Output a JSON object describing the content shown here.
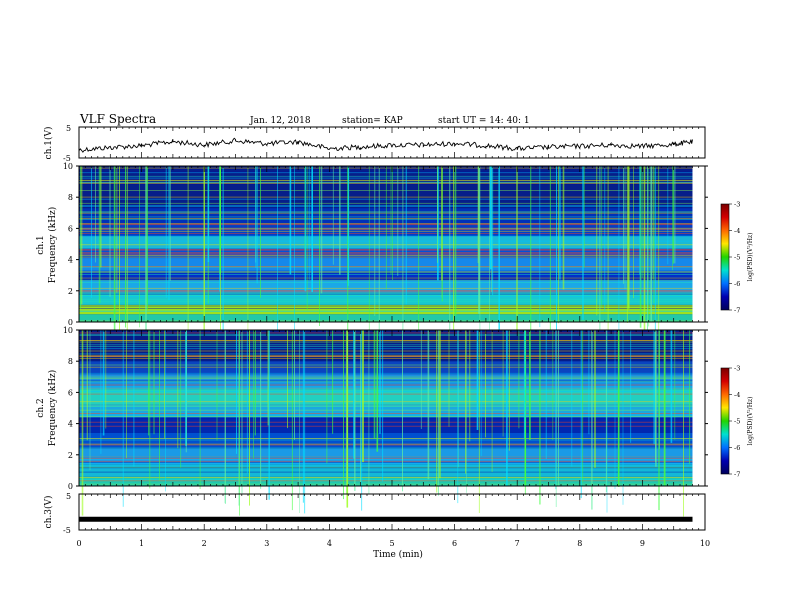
{
  "header": {
    "title": "VLF Spectra",
    "date": "Jan. 12, 2018",
    "station": "station= KAP",
    "start": "start UT =  14: 40: 1"
  },
  "colorbar": {
    "label": "log(PSD)(V²/Hz)",
    "ticks": [
      "-3",
      "-4",
      "-5",
      "-6",
      "-7"
    ],
    "colors": [
      "#7a0000",
      "#d40000",
      "#ff6a00",
      "#ffe600",
      "#22d400",
      "#00e0d0",
      "#0070ff",
      "#0000b0",
      "#00005a"
    ]
  },
  "chart_data": [
    {
      "type": "line",
      "panel": "ch1-voltage",
      "ylabel": "ch.1(V)",
      "yticks": [
        "5",
        "-5"
      ],
      "ylim": [
        -5,
        5
      ],
      "x": [
        0.0,
        0.5,
        1.0,
        1.5,
        2.0,
        2.5,
        3.0,
        3.5,
        4.0,
        4.5,
        5.0,
        5.5,
        6.0,
        6.5,
        7.0,
        7.5,
        8.0,
        8.5,
        9.0,
        9.5,
        9.8
      ],
      "y": [
        -2.4,
        -1.6,
        -1.0,
        0.3,
        -0.8,
        0.6,
        -0.4,
        0.2,
        -2.0,
        -1.4,
        -0.9,
        -0.8,
        -0.3,
        -1.0,
        -2.0,
        -1.5,
        -1.2,
        -0.8,
        -1.2,
        -0.6,
        0.2
      ]
    },
    {
      "type": "heatmap",
      "panel": "ch1-spectrogram",
      "ylabel_top": "ch.1",
      "ylabel": "Frequency (kHz)",
      "yticks": [
        "0",
        "2",
        "4",
        "6",
        "8",
        "10"
      ],
      "ylim": [
        0,
        10
      ],
      "bands": [
        {
          "from": 0.0,
          "to": 0.5,
          "color": "#22c9a8"
        },
        {
          "from": 0.5,
          "to": 1.1,
          "color": "#9ee020"
        },
        {
          "from": 1.1,
          "to": 1.9,
          "color": "#18c8d0"
        },
        {
          "from": 1.9,
          "to": 2.7,
          "color": "#1aa8e8"
        },
        {
          "from": 2.7,
          "to": 3.3,
          "color": "#002fc8"
        },
        {
          "from": 3.3,
          "to": 4.1,
          "color": "#1688ea"
        },
        {
          "from": 4.1,
          "to": 4.7,
          "color": "#0052d8"
        },
        {
          "from": 4.7,
          "to": 5.5,
          "color": "#1ab8d8"
        },
        {
          "from": 5.5,
          "to": 6.3,
          "color": "#0040c8"
        },
        {
          "from": 6.3,
          "to": 7.3,
          "color": "#0030b8"
        },
        {
          "from": 7.3,
          "to": 10.0,
          "color": "#061e8a"
        }
      ]
    },
    {
      "type": "heatmap",
      "panel": "ch2-spectrogram",
      "ylabel_top": "ch.2",
      "ylabel": "Frequency (kHz)",
      "yticks": [
        "0",
        "2",
        "4",
        "6",
        "8",
        "10"
      ],
      "ylim": [
        0,
        10
      ],
      "bands": [
        {
          "from": 0.0,
          "to": 0.6,
          "color": "#20c8b0"
        },
        {
          "from": 0.6,
          "to": 1.4,
          "color": "#12b8d8"
        },
        {
          "from": 1.4,
          "to": 2.4,
          "color": "#1a9ae6"
        },
        {
          "from": 2.4,
          "to": 3.4,
          "color": "#0050d0"
        },
        {
          "from": 3.4,
          "to": 4.4,
          "color": "#0028b0"
        },
        {
          "from": 4.4,
          "to": 5.2,
          "color": "#1aa8e0"
        },
        {
          "from": 5.2,
          "to": 6.2,
          "color": "#22d0c0"
        },
        {
          "from": 6.2,
          "to": 7.2,
          "color": "#1a90e0"
        },
        {
          "from": 7.2,
          "to": 8.0,
          "color": "#0a44c0"
        },
        {
          "from": 8.0,
          "to": 10.0,
          "color": "#061c88"
        }
      ]
    },
    {
      "type": "line",
      "panel": "ch3-voltage",
      "ylabel": "ch.3(V)",
      "yticks": [
        "5",
        "-5"
      ],
      "ylim": [
        -5,
        5
      ],
      "x": [
        0.0,
        9.8
      ],
      "y": [
        -2.0,
        -2.0
      ]
    }
  ],
  "xaxis": {
    "label": "Time (min)",
    "ticks": [
      "0",
      "1",
      "2",
      "3",
      "4",
      "5",
      "6",
      "7",
      "8",
      "9",
      "10"
    ],
    "xlim": [
      0,
      10
    ]
  }
}
